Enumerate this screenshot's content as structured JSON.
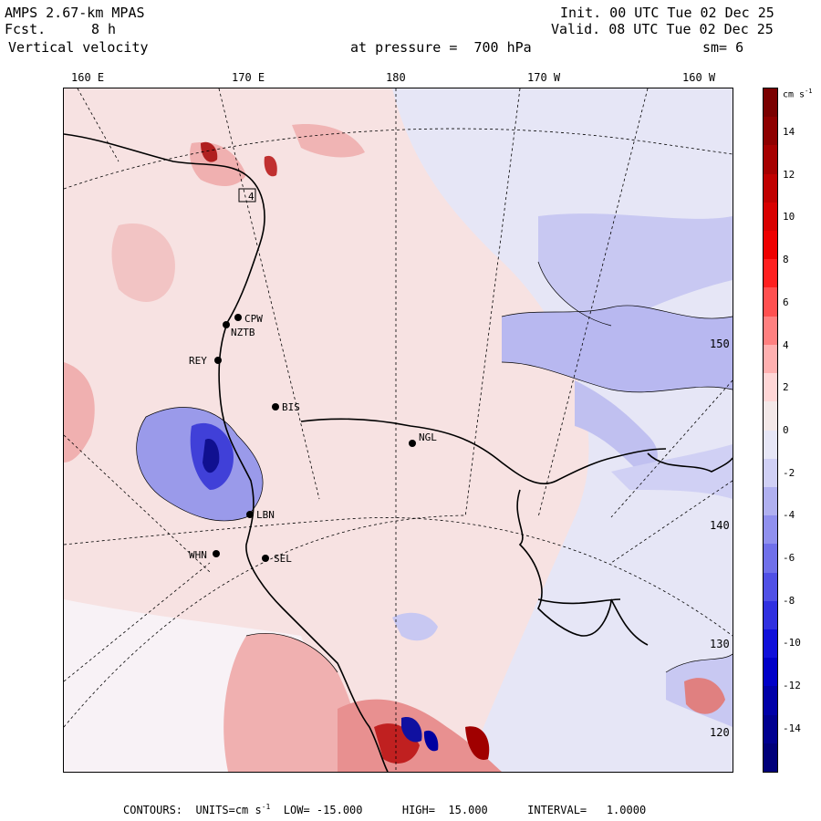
{
  "header": {
    "model": "AMPS 2.67-km MPAS",
    "fcst_label": "Fcst.",
    "fcst_value": "8 h",
    "field": "Vertical velocity",
    "init": "Init. 00 UTC Tue 02 Dec 25",
    "valid": "Valid. 08 UTC Tue 02 Dec 25",
    "level": "at pressure =  700 hPa",
    "smoothing": "sm= 6"
  },
  "map": {
    "top_lon_labels": [
      "160 E",
      "170 E",
      "180",
      "170 W",
      "160 W"
    ],
    "right_lat_labels": [
      "150 W",
      "140 W",
      "130 W",
      "120 W"
    ],
    "stations": [
      "CPW",
      "NZTB",
      "REY",
      "BIS",
      "NGL",
      "LBN",
      "WHN",
      "SEL"
    ],
    "box_label": "4",
    "colors": {
      "positive_light": "#f5d6d6",
      "positive_mid": "#f0a8a8",
      "negative_light": "#dcdcf5",
      "negative_mid": "#8f8fe8",
      "coast": "#000000"
    }
  },
  "colorbar": {
    "unit": "cm s",
    "unit_exp": "-1",
    "ticks": [
      "14",
      "12",
      "10",
      "8",
      "6",
      "4",
      "2",
      "0",
      "-2",
      "-4",
      "-6",
      "-8",
      "-10",
      "-12",
      "-14"
    ],
    "colors": [
      "#7a0000",
      "#8e0000",
      "#a60000",
      "#c00000",
      "#d80000",
      "#ee0000",
      "#ff2020",
      "#ff5050",
      "#ff8080",
      "#ffb0b0",
      "#ffd6d6",
      "#f3e8e8",
      "#e6e6f6",
      "#d0d0f5",
      "#b0b0f0",
      "#9090ee",
      "#7070ea",
      "#5050e6",
      "#3030e0",
      "#1010da",
      "#0000c8",
      "#0000a8",
      "#000090",
      "#00007a"
    ]
  },
  "footer": {
    "text": "CONTOURS:  UNITS=cm s",
    "exp": "-1",
    "rest": "  LOW= -15.000      HIGH=  15.000      INTERVAL=   1.0000"
  }
}
